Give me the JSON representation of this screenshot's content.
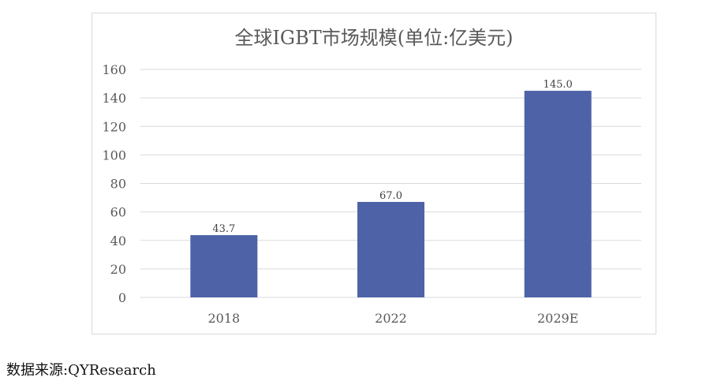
{
  "chart_data": {
    "type": "bar",
    "title": "全球IGBT市场规模(单位:亿美元)",
    "categories": [
      "2018",
      "2022",
      "2029E"
    ],
    "values": [
      43.7,
      67.0,
      145.0
    ],
    "value_labels": [
      "43.7",
      "67.0",
      "145.0"
    ],
    "ylim": [
      0,
      160
    ],
    "yticks": [
      0,
      20,
      40,
      60,
      80,
      100,
      120,
      140,
      160
    ],
    "xlabel": "",
    "ylabel": "",
    "grid": true,
    "legend": "none",
    "bar_color": "#4e62a8",
    "grid_color": "#d9d9d9",
    "text_color": "#595959"
  },
  "footer": {
    "source_text": "数据来源:QYResearch"
  }
}
